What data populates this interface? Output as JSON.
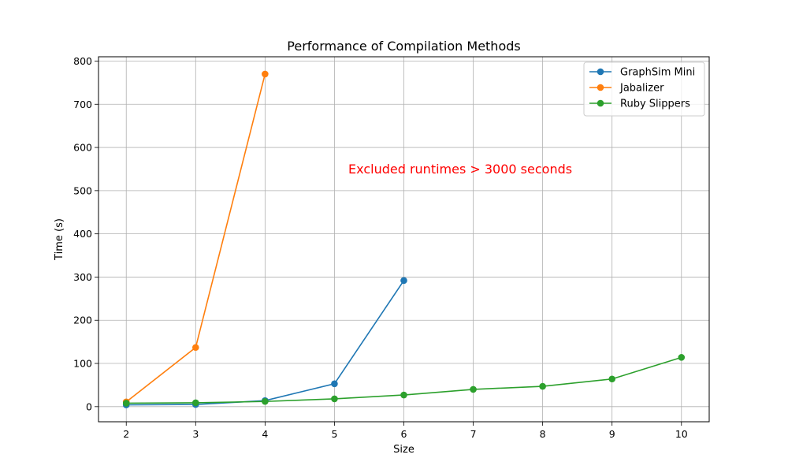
{
  "chart_data": {
    "type": "line",
    "title": "Performance of Compilation Methods",
    "xlabel": "Size",
    "ylabel": "Time (s)",
    "xlim": [
      1.6,
      10.4
    ],
    "ylim": [
      -35,
      810
    ],
    "xticks": [
      2,
      3,
      4,
      5,
      6,
      7,
      8,
      9,
      10
    ],
    "yticks": [
      0,
      100,
      200,
      300,
      400,
      500,
      600,
      700,
      800
    ],
    "grid": true,
    "legend_position": "top-right",
    "series": [
      {
        "name": "GraphSim Mini",
        "color": "#1f77b4",
        "x": [
          2,
          3,
          4,
          5,
          6
        ],
        "y": [
          4,
          5,
          14,
          53,
          292
        ]
      },
      {
        "name": "Jabalizer",
        "color": "#ff7f0e",
        "x": [
          2,
          3,
          4
        ],
        "y": [
          11,
          137,
          770
        ]
      },
      {
        "name": "Ruby Slippers",
        "color": "#2ca02c",
        "x": [
          2,
          3,
          4,
          5,
          6,
          7,
          8,
          9,
          10
        ],
        "y": [
          8,
          9,
          12,
          18,
          27,
          40,
          47,
          64,
          114
        ]
      }
    ],
    "annotation": {
      "text": "Excluded runtimes > 3000 seconds",
      "x": 5.2,
      "y": 540,
      "color": "#ff0000"
    }
  }
}
